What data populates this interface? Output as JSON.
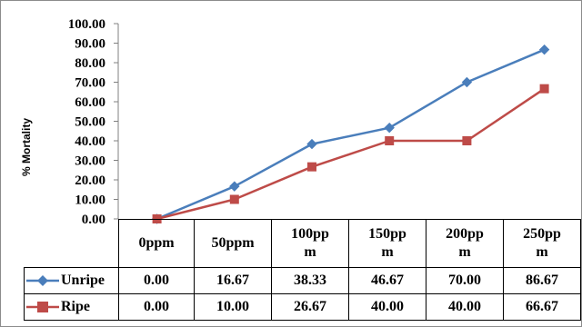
{
  "chart_data": {
    "type": "line",
    "title": "",
    "ylabel": "% Mortality",
    "xlabel": "",
    "ylim": [
      0,
      100
    ],
    "yticks": [
      "0.00",
      "10.00",
      "20.00",
      "30.00",
      "40.00",
      "50.00",
      "60.00",
      "70.00",
      "80.00",
      "90.00",
      "100.00"
    ],
    "categories": [
      "0ppm",
      "50ppm",
      "100pp\nm",
      "150pp\nm",
      "200pp\nm",
      "250pp\nm"
    ],
    "series": [
      {
        "name": "Unripe",
        "values": [
          0.0,
          16.67,
          38.33,
          46.67,
          70.0,
          86.67
        ],
        "labels": [
          "0.00",
          "16.67",
          "38.33",
          "46.67",
          "70.00",
          "86.67"
        ],
        "color": "#4a7ebb",
        "marker": "diamond"
      },
      {
        "name": "Ripe",
        "values": [
          0.0,
          10.0,
          26.67,
          40.0,
          40.0,
          66.67
        ],
        "labels": [
          "0.00",
          "10.00",
          "26.67",
          "40.00",
          "40.00",
          "66.67"
        ],
        "color": "#be4b48",
        "marker": "square"
      }
    ],
    "grid": false,
    "legend": "data-table"
  }
}
